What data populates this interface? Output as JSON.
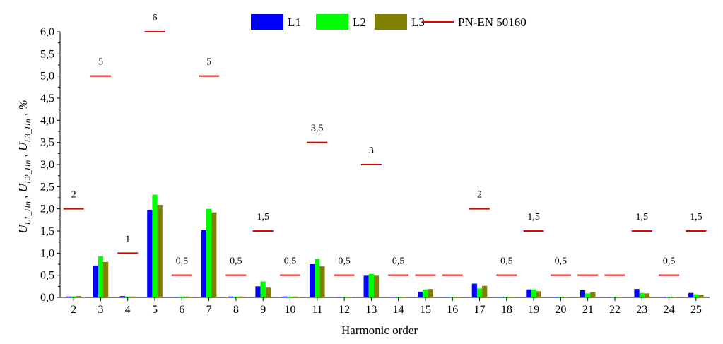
{
  "chart_data": {
    "type": "bar",
    "xlabel": "Harmonic order",
    "ylabel": "U_L1_Hn , U_L2_Hn , U_L3_Hn , %",
    "ylabel_parts": [
      {
        "main": "U",
        "sub": "L1_Hn",
        "sep": " , "
      },
      {
        "main": "U",
        "sub": "L2_Hn",
        "sep": " , "
      },
      {
        "main": "U",
        "sub": "L3_Hn",
        "sep": " , %"
      }
    ],
    "ylim": [
      0,
      6.0
    ],
    "y_ticks": [
      "0,0",
      "0,5",
      "1,0",
      "1,5",
      "2,0",
      "2,5",
      "3,0",
      "3,5",
      "4,0",
      "4,5",
      "5,0",
      "5,5",
      "6,0"
    ],
    "categories": [
      "2",
      "3",
      "4",
      "5",
      "6",
      "7",
      "8",
      "9",
      "10",
      "11",
      "12",
      "13",
      "14",
      "15",
      "16",
      "17",
      "18",
      "19",
      "20",
      "21",
      "22",
      "23",
      "24",
      "25"
    ],
    "series": [
      {
        "name": "L1",
        "color": "#0000ff",
        "values": [
          0.02,
          0.72,
          0.03,
          1.98,
          0.01,
          1.52,
          0.02,
          0.25,
          0.02,
          0.75,
          0.01,
          0.49,
          0.01,
          0.13,
          0.01,
          0.31,
          0.01,
          0.18,
          0.01,
          0.16,
          0.01,
          0.19,
          0.01,
          0.1
        ]
      },
      {
        "name": "L2",
        "color": "#00ff00",
        "values": [
          0.02,
          0.93,
          0.02,
          2.32,
          0.02,
          2.0,
          0.02,
          0.36,
          0.02,
          0.87,
          0.01,
          0.53,
          0.01,
          0.18,
          0.01,
          0.2,
          0.01,
          0.18,
          0.01,
          0.09,
          0.01,
          0.1,
          0.01,
          0.07
        ]
      },
      {
        "name": "L3",
        "color": "#808000",
        "values": [
          0.03,
          0.8,
          0.02,
          2.09,
          0.02,
          1.92,
          0.02,
          0.22,
          0.02,
          0.7,
          0.01,
          0.49,
          0.01,
          0.19,
          0.01,
          0.26,
          0.01,
          0.14,
          0.01,
          0.12,
          0.01,
          0.09,
          0.01,
          0.06
        ]
      }
    ],
    "limit_series": {
      "name": "PN-EN 50160",
      "color": "#e00000",
      "values": [
        2,
        5,
        1,
        6,
        0.5,
        5,
        0.5,
        1.5,
        0.5,
        3.5,
        0.5,
        3,
        0.5,
        0.5,
        0.5,
        2,
        0.5,
        1.5,
        0.5,
        0.5,
        0.5,
        1.5,
        0.5,
        1.5
      ],
      "labels": [
        "2",
        "5",
        "1",
        "6",
        "0,5",
        "5",
        "0,5",
        "1,5",
        "0,5",
        "3,5",
        "0,5",
        "3",
        "0,5",
        "",
        "",
        "2",
        "0,5",
        "1,5",
        "0,5",
        "",
        "",
        "1,5",
        "0,5",
        "1,5"
      ]
    },
    "legend": [
      "L1",
      "L2",
      "L3",
      "PN-EN 50160"
    ],
    "legend_position": "top-right",
    "grid": false
  }
}
